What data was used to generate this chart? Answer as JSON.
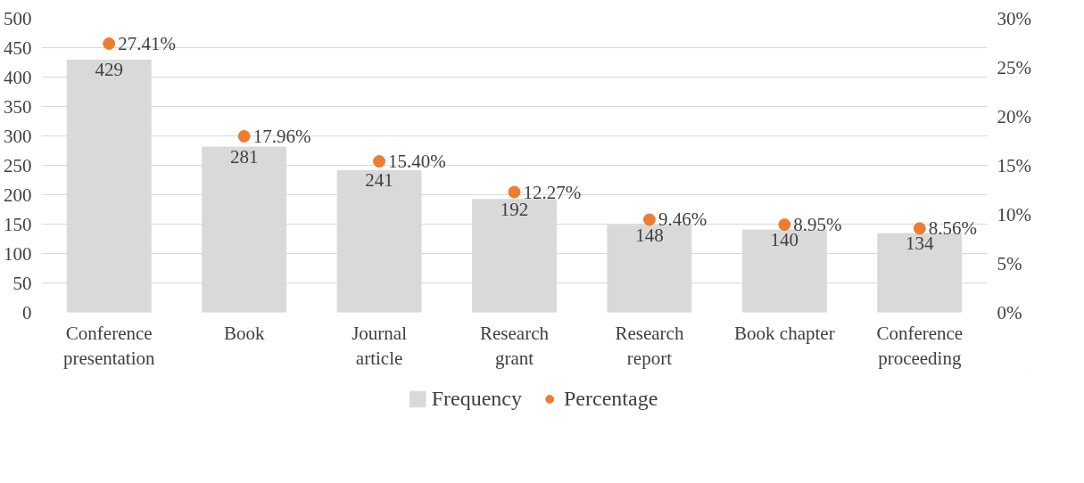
{
  "chart_data": {
    "type": "bar",
    "categories": [
      "Conference presentation",
      "Book",
      "Journal article",
      "Research grant",
      "Research report",
      "Book chapter",
      "Conference proceeding"
    ],
    "series": [
      {
        "name": "Frequency",
        "type": "bar",
        "color": "#d9d9d9",
        "values": [
          429,
          281,
          241,
          192,
          148,
          140,
          134
        ],
        "value_labels": [
          "429",
          "281",
          "241",
          "192",
          "148",
          "140",
          "134"
        ]
      },
      {
        "name": "Percentage",
        "type": "scatter",
        "axis": "y2",
        "color": "#ed7d31",
        "values": [
          27.41,
          17.96,
          15.4,
          12.27,
          9.46,
          8.95,
          8.56
        ],
        "value_labels": [
          "27.41%",
          "17.96%",
          "15.40%",
          "12.27%",
          "9.46%",
          "8.95%",
          "8.56%"
        ]
      }
    ],
    "ylim": [
      0,
      500
    ],
    "yticks": [
      0,
      50,
      100,
      150,
      200,
      250,
      300,
      350,
      400,
      450,
      500
    ],
    "y2lim": [
      0,
      30
    ],
    "y2ticks": [
      {
        "value": 0,
        "label": "0%"
      },
      {
        "value": 5,
        "label": "5%"
      },
      {
        "value": 10,
        "label": "10%"
      },
      {
        "value": 15,
        "label": "15%"
      },
      {
        "value": 20,
        "label": "20%"
      },
      {
        "value": 25,
        "label": "25%"
      },
      {
        "value": 30,
        "label": "30%"
      }
    ],
    "grid": "y",
    "legend": "bottom",
    "marker": "circle"
  }
}
